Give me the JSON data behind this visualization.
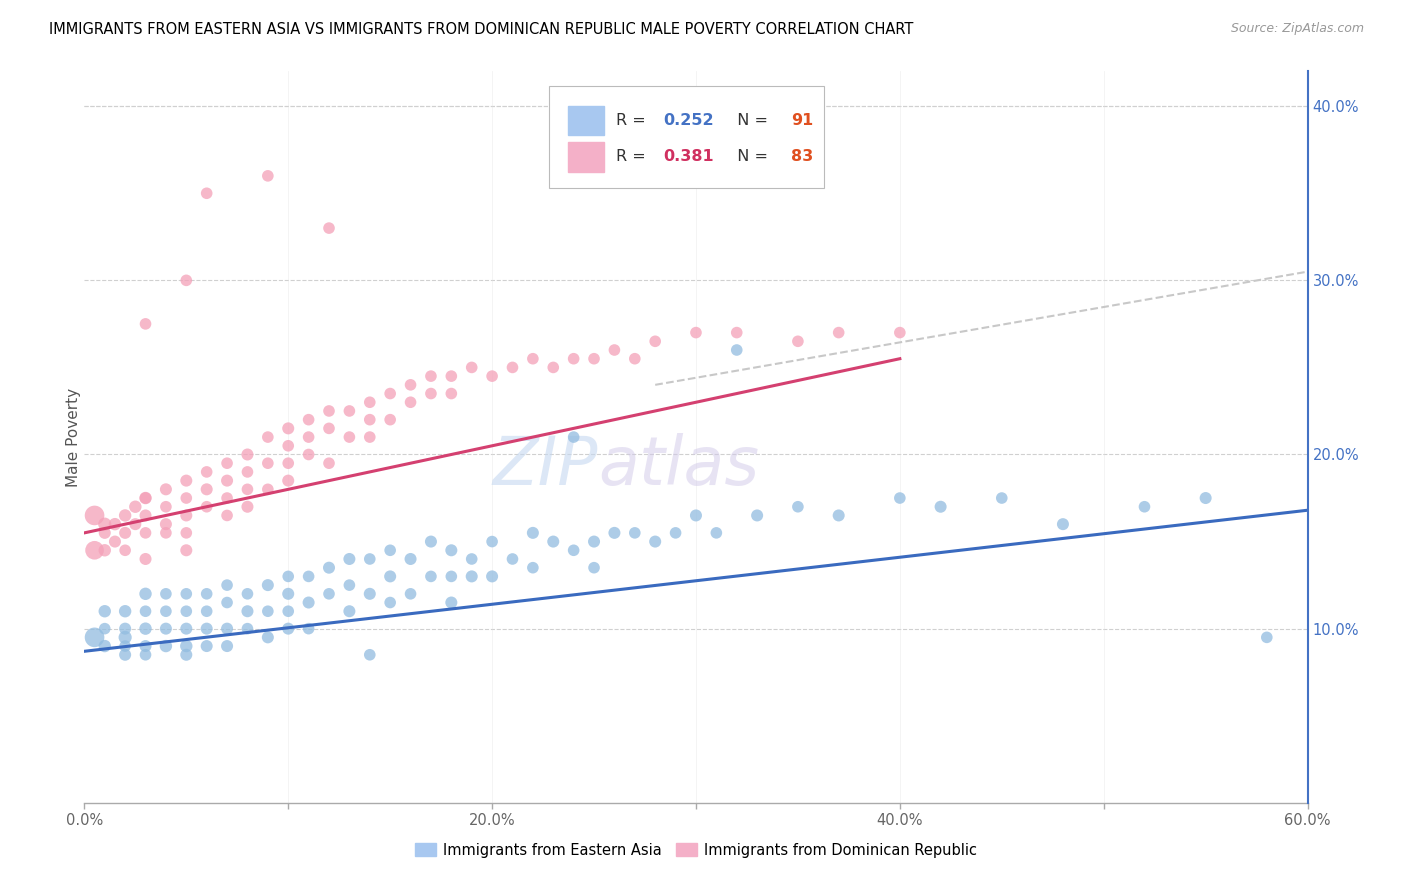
{
  "title": "IMMIGRANTS FROM EASTERN ASIA VS IMMIGRANTS FROM DOMINICAN REPUBLIC MALE POVERTY CORRELATION CHART",
  "source": "Source: ZipAtlas.com",
  "ylabel": "Male Poverty",
  "xlim": [
    0.0,
    0.6
  ],
  "ylim": [
    0.0,
    0.42
  ],
  "xtick_labels": [
    "0.0%",
    "",
    "20.0%",
    "",
    "40.0%",
    "",
    "60.0%"
  ],
  "xtick_vals": [
    0.0,
    0.1,
    0.2,
    0.3,
    0.4,
    0.5,
    0.6
  ],
  "ytick_labels": [
    "10.0%",
    "20.0%",
    "30.0%",
    "40.0%"
  ],
  "ytick_vals": [
    0.1,
    0.2,
    0.3,
    0.4
  ],
  "legend_r1": "0.252",
  "legend_n1": "91",
  "legend_r2": "0.381",
  "legend_n2": "83",
  "color_blue": "#92bce0",
  "color_pink": "#f4a0b8",
  "color_blue_line": "#3a6abf",
  "color_pink_line": "#d44070",
  "color_pink_dashed": "#e8a0b8",
  "color_dashed": "#c8c8c8",
  "watermark_zip": "ZIP",
  "watermark_atlas": "atlas",
  "blue_scatter_x": [
    0.005,
    0.01,
    0.01,
    0.01,
    0.02,
    0.02,
    0.02,
    0.02,
    0.02,
    0.03,
    0.03,
    0.03,
    0.03,
    0.03,
    0.04,
    0.04,
    0.04,
    0.04,
    0.05,
    0.05,
    0.05,
    0.05,
    0.05,
    0.06,
    0.06,
    0.06,
    0.06,
    0.07,
    0.07,
    0.07,
    0.07,
    0.08,
    0.08,
    0.08,
    0.09,
    0.09,
    0.09,
    0.1,
    0.1,
    0.1,
    0.1,
    0.11,
    0.11,
    0.11,
    0.12,
    0.12,
    0.13,
    0.13,
    0.13,
    0.14,
    0.14,
    0.15,
    0.15,
    0.15,
    0.16,
    0.16,
    0.17,
    0.17,
    0.18,
    0.18,
    0.18,
    0.19,
    0.19,
    0.2,
    0.2,
    0.21,
    0.22,
    0.22,
    0.23,
    0.24,
    0.25,
    0.25,
    0.26,
    0.27,
    0.28,
    0.29,
    0.3,
    0.31,
    0.33,
    0.35,
    0.37,
    0.4,
    0.42,
    0.45,
    0.48,
    0.52,
    0.55,
    0.58,
    0.32,
    0.24,
    0.14
  ],
  "blue_scatter_y": [
    0.095,
    0.09,
    0.1,
    0.11,
    0.095,
    0.1,
    0.11,
    0.09,
    0.085,
    0.1,
    0.11,
    0.09,
    0.12,
    0.085,
    0.1,
    0.11,
    0.09,
    0.12,
    0.1,
    0.11,
    0.09,
    0.12,
    0.085,
    0.11,
    0.1,
    0.12,
    0.09,
    0.115,
    0.1,
    0.125,
    0.09,
    0.12,
    0.11,
    0.1,
    0.125,
    0.11,
    0.095,
    0.13,
    0.12,
    0.11,
    0.1,
    0.13,
    0.115,
    0.1,
    0.135,
    0.12,
    0.14,
    0.125,
    0.11,
    0.14,
    0.12,
    0.145,
    0.13,
    0.115,
    0.14,
    0.12,
    0.15,
    0.13,
    0.145,
    0.13,
    0.115,
    0.14,
    0.13,
    0.15,
    0.13,
    0.14,
    0.155,
    0.135,
    0.15,
    0.145,
    0.15,
    0.135,
    0.155,
    0.155,
    0.15,
    0.155,
    0.165,
    0.155,
    0.165,
    0.17,
    0.165,
    0.175,
    0.17,
    0.175,
    0.16,
    0.17,
    0.175,
    0.095,
    0.26,
    0.21,
    0.085
  ],
  "blue_scatter_sizes": [
    200,
    80,
    70,
    80,
    90,
    75,
    80,
    70,
    75,
    80,
    70,
    75,
    80,
    70,
    75,
    70,
    80,
    70,
    75,
    70,
    80,
    70,
    75,
    70,
    75,
    70,
    75,
    70,
    75,
    70,
    75,
    70,
    75,
    70,
    75,
    70,
    75,
    70,
    75,
    70,
    75,
    70,
    75,
    70,
    75,
    70,
    75,
    70,
    75,
    70,
    75,
    70,
    75,
    70,
    75,
    70,
    75,
    70,
    75,
    70,
    75,
    70,
    75,
    70,
    75,
    70,
    75,
    70,
    75,
    70,
    75,
    70,
    75,
    70,
    75,
    70,
    75,
    70,
    75,
    70,
    75,
    70,
    75,
    70,
    75,
    70,
    75,
    70,
    70,
    70,
    70
  ],
  "pink_scatter_x": [
    0.005,
    0.005,
    0.01,
    0.01,
    0.01,
    0.015,
    0.015,
    0.02,
    0.02,
    0.02,
    0.025,
    0.025,
    0.03,
    0.03,
    0.03,
    0.03,
    0.03,
    0.04,
    0.04,
    0.04,
    0.04,
    0.05,
    0.05,
    0.05,
    0.05,
    0.05,
    0.06,
    0.06,
    0.06,
    0.07,
    0.07,
    0.07,
    0.07,
    0.08,
    0.08,
    0.08,
    0.08,
    0.09,
    0.09,
    0.09,
    0.1,
    0.1,
    0.1,
    0.1,
    0.11,
    0.11,
    0.11,
    0.12,
    0.12,
    0.12,
    0.13,
    0.13,
    0.14,
    0.14,
    0.14,
    0.15,
    0.15,
    0.16,
    0.16,
    0.17,
    0.17,
    0.18,
    0.18,
    0.19,
    0.2,
    0.21,
    0.22,
    0.23,
    0.24,
    0.25,
    0.26,
    0.27,
    0.28,
    0.3,
    0.32,
    0.35,
    0.37,
    0.4,
    0.06,
    0.09,
    0.12,
    0.03,
    0.05
  ],
  "pink_scatter_y": [
    0.165,
    0.145,
    0.16,
    0.145,
    0.155,
    0.16,
    0.15,
    0.165,
    0.155,
    0.145,
    0.17,
    0.16,
    0.175,
    0.165,
    0.155,
    0.14,
    0.175,
    0.18,
    0.17,
    0.16,
    0.155,
    0.185,
    0.175,
    0.165,
    0.155,
    0.145,
    0.19,
    0.18,
    0.17,
    0.195,
    0.185,
    0.175,
    0.165,
    0.2,
    0.19,
    0.18,
    0.17,
    0.21,
    0.195,
    0.18,
    0.215,
    0.205,
    0.195,
    0.185,
    0.22,
    0.21,
    0.2,
    0.225,
    0.215,
    0.195,
    0.225,
    0.21,
    0.23,
    0.22,
    0.21,
    0.235,
    0.22,
    0.24,
    0.23,
    0.245,
    0.235,
    0.245,
    0.235,
    0.25,
    0.245,
    0.25,
    0.255,
    0.25,
    0.255,
    0.255,
    0.26,
    0.255,
    0.265,
    0.27,
    0.27,
    0.265,
    0.27,
    0.27,
    0.35,
    0.36,
    0.33,
    0.275,
    0.3
  ],
  "pink_scatter_sizes": [
    200,
    180,
    90,
    80,
    75,
    80,
    75,
    80,
    75,
    70,
    80,
    75,
    80,
    75,
    70,
    75,
    70,
    75,
    70,
    75,
    70,
    75,
    70,
    75,
    70,
    75,
    70,
    75,
    70,
    70,
    75,
    70,
    70,
    75,
    70,
    70,
    75,
    70,
    70,
    70,
    75,
    70,
    70,
    75,
    70,
    70,
    70,
    70,
    70,
    70,
    70,
    70,
    70,
    70,
    70,
    70,
    70,
    70,
    70,
    70,
    70,
    70,
    70,
    70,
    70,
    70,
    70,
    70,
    70,
    70,
    70,
    70,
    70,
    70,
    70,
    70,
    70,
    70,
    70,
    70,
    70,
    70,
    70
  ],
  "blue_trend_x": [
    0.0,
    0.6
  ],
  "blue_trend_y": [
    0.087,
    0.168
  ],
  "pink_trend_x": [
    0.0,
    0.4
  ],
  "pink_trend_y": [
    0.155,
    0.255
  ],
  "dashed_trend_x": [
    0.28,
    0.6
  ],
  "dashed_trend_y": [
    0.24,
    0.305
  ]
}
